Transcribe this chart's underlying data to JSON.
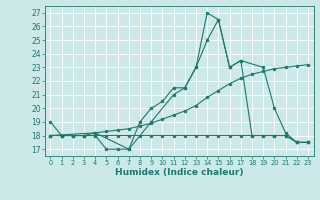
{
  "xlabel": "Humidex (Indice chaleur)",
  "bg_color": "#cce8e8",
  "grid_color": "#ffffff",
  "line_color": "#1a7a6e",
  "xlim": [
    -0.5,
    23.5
  ],
  "ylim": [
    16.5,
    27.5
  ],
  "yticks": [
    17,
    18,
    19,
    20,
    21,
    22,
    23,
    24,
    25,
    26,
    27
  ],
  "xticks": [
    0,
    1,
    2,
    3,
    4,
    5,
    6,
    7,
    8,
    9,
    10,
    11,
    12,
    13,
    14,
    15,
    16,
    17,
    18,
    19,
    20,
    21,
    22,
    23
  ],
  "line1_x": [
    0,
    1,
    2,
    3,
    4,
    5,
    6,
    7,
    8,
    9,
    10,
    11,
    12,
    13,
    14,
    15,
    16,
    17,
    18,
    19,
    20,
    21,
    22,
    23
  ],
  "line1_y": [
    19,
    18,
    18,
    18,
    18,
    17,
    17,
    17,
    19.0,
    20.0,
    20.5,
    21.5,
    21.5,
    23.0,
    27.0,
    26.5,
    23.0,
    23.5,
    18,
    18,
    18,
    18,
    17.5,
    17.5
  ],
  "line2_x": [
    0,
    1,
    2,
    3,
    4,
    5,
    6,
    7,
    8,
    9,
    10,
    11,
    12,
    13,
    14,
    15,
    16,
    17,
    18,
    19,
    20,
    21,
    22,
    23
  ],
  "line2_y": [
    18,
    18,
    18,
    18,
    18,
    18,
    18,
    18,
    18,
    18,
    18,
    18,
    18,
    18,
    18,
    18,
    18,
    18,
    18,
    18,
    18,
    18,
    17.5,
    17.5
  ],
  "line3_x": [
    0,
    4,
    7,
    9,
    11,
    12,
    13,
    14,
    15,
    16,
    17,
    19,
    20,
    21,
    22,
    23
  ],
  "line3_y": [
    18,
    18.2,
    17.0,
    19.0,
    21.0,
    21.5,
    23.0,
    25.0,
    26.5,
    23.0,
    23.5,
    23.0,
    20.0,
    18.2,
    17.5,
    17.5
  ],
  "line4_x": [
    0,
    1,
    2,
    3,
    4,
    5,
    6,
    7,
    8,
    9,
    10,
    11,
    12,
    13,
    14,
    15,
    16,
    17,
    18,
    19,
    20,
    21,
    22,
    23
  ],
  "line4_y": [
    18,
    18,
    18,
    18,
    18.2,
    18.3,
    18.4,
    18.5,
    18.7,
    18.9,
    19.2,
    19.5,
    19.8,
    20.2,
    20.8,
    21.3,
    21.8,
    22.2,
    22.5,
    22.7,
    22.9,
    23.0,
    23.1,
    23.2
  ]
}
